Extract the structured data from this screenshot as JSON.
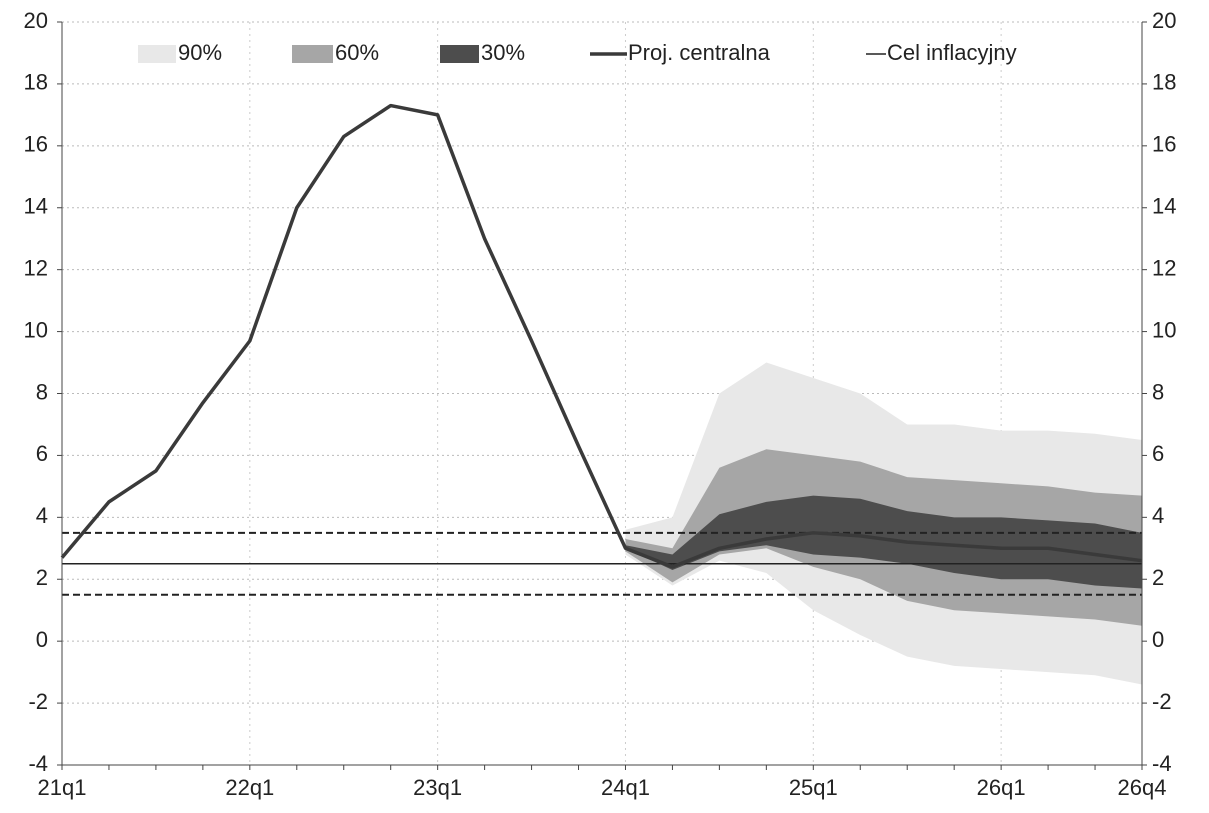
{
  "chart_data": {
    "type": "fan",
    "categories": [
      "21q1",
      null,
      null,
      null,
      "22q1",
      null,
      null,
      null,
      "23q1",
      null,
      null,
      null,
      "24q1",
      null,
      null,
      null,
      "25q1",
      null,
      null,
      null,
      "26q1",
      null,
      null,
      "26q4"
    ],
    "series": [
      {
        "name": "Proj. centralna",
        "color": "#3a3a3a",
        "values": [
          2.7,
          4.5,
          5.5,
          7.7,
          9.7,
          14.0,
          16.3,
          17.3,
          17.0,
          13.0,
          9.7,
          6.3,
          3.0,
          2.4,
          3.0,
          3.3,
          3.5,
          3.4,
          3.2,
          3.1,
          3.0,
          3.0,
          2.8,
          2.6
        ]
      }
    ],
    "bands": [
      {
        "name": "90%",
        "color": "#e8e8e8",
        "upper": [
          null,
          null,
          null,
          null,
          null,
          null,
          null,
          null,
          null,
          null,
          null,
          null,
          3.6,
          4.0,
          8.0,
          9.0,
          8.5,
          8.0,
          7.0,
          7.0,
          6.8,
          6.8,
          6.7,
          6.5
        ],
        "lower": [
          null,
          null,
          null,
          null,
          null,
          null,
          null,
          null,
          null,
          null,
          null,
          null,
          2.8,
          1.8,
          2.6,
          2.2,
          1.0,
          0.2,
          -0.5,
          -0.8,
          -0.9,
          -1.0,
          -1.1,
          -1.4
        ]
      },
      {
        "name": "60%",
        "color": "#a6a6a6",
        "upper": [
          null,
          null,
          null,
          null,
          null,
          null,
          null,
          null,
          null,
          null,
          null,
          null,
          3.3,
          3.0,
          5.6,
          6.2,
          6.0,
          5.8,
          5.3,
          5.2,
          5.1,
          5.0,
          4.8,
          4.7
        ],
        "lower": [
          null,
          null,
          null,
          null,
          null,
          null,
          null,
          null,
          null,
          null,
          null,
          null,
          2.9,
          1.9,
          2.8,
          3.0,
          2.4,
          2.0,
          1.3,
          1.0,
          0.9,
          0.8,
          0.7,
          0.5
        ]
      },
      {
        "name": "30%",
        "color": "#4d4d4d",
        "upper": [
          null,
          null,
          null,
          null,
          null,
          null,
          null,
          null,
          null,
          null,
          null,
          null,
          3.1,
          2.8,
          4.1,
          4.5,
          4.7,
          4.6,
          4.2,
          4.0,
          4.0,
          3.9,
          3.8,
          3.5
        ],
        "lower": [
          null,
          null,
          null,
          null,
          null,
          null,
          null,
          null,
          null,
          null,
          null,
          null,
          3.0,
          2.3,
          2.9,
          3.1,
          2.8,
          2.7,
          2.5,
          2.2,
          2.0,
          2.0,
          1.8,
          1.7
        ]
      }
    ],
    "target": {
      "name": "Cel inflacyjny",
      "value": 2.5,
      "band": [
        1.5,
        3.5
      ],
      "color": "#222222"
    },
    "ylim": [
      -4,
      20
    ],
    "yticks": [
      -4,
      -2,
      0,
      2,
      4,
      6,
      8,
      10,
      12,
      14,
      16,
      18,
      20
    ],
    "y2lim": [
      -4,
      20
    ],
    "y2ticks": [
      -4,
      -2,
      0,
      2,
      4,
      6,
      8,
      10,
      12,
      14,
      16,
      18,
      20
    ],
    "grid": true
  }
}
